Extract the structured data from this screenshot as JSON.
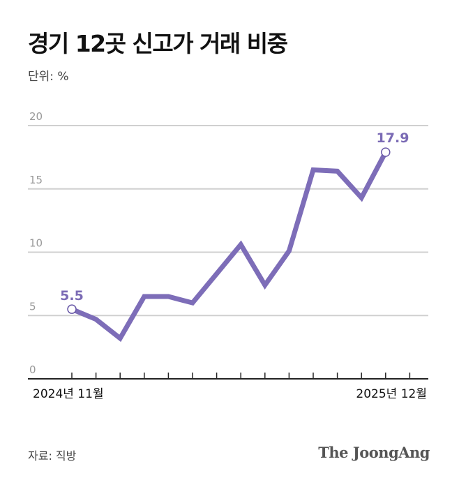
{
  "title": "경기 12곳 신고가 거래 비중",
  "unit_label": "단위: %",
  "source": "자료: 직방",
  "logo": "The JoongAng",
  "colors": {
    "line": "#7d6db8",
    "label": "#7b6bb5",
    "grid": "#d0d0d0"
  },
  "chart_data": {
    "type": "line",
    "x": [
      "2024-11",
      "2024-12",
      "2025-01",
      "2025-02",
      "2025-03",
      "2025-04",
      "2025-05",
      "2025-06",
      "2025-07",
      "2025-08",
      "2025-09",
      "2025-10",
      "2025-11",
      "2025-12"
    ],
    "x_tick_labels": {
      "first": "2024년 11월",
      "last": "2025년 12월"
    },
    "values": [
      5.5,
      4.7,
      3.2,
      6.5,
      6.5,
      6.0,
      8.3,
      10.6,
      7.4,
      10.1,
      16.5,
      16.4,
      14.3,
      17.9
    ],
    "data_labels": {
      "first": "5.5",
      "last": "17.9"
    },
    "yticks": [
      "0",
      "5",
      "10",
      "15",
      "20"
    ],
    "ylim": [
      0,
      20
    ],
    "grid": true,
    "legend": "none"
  }
}
